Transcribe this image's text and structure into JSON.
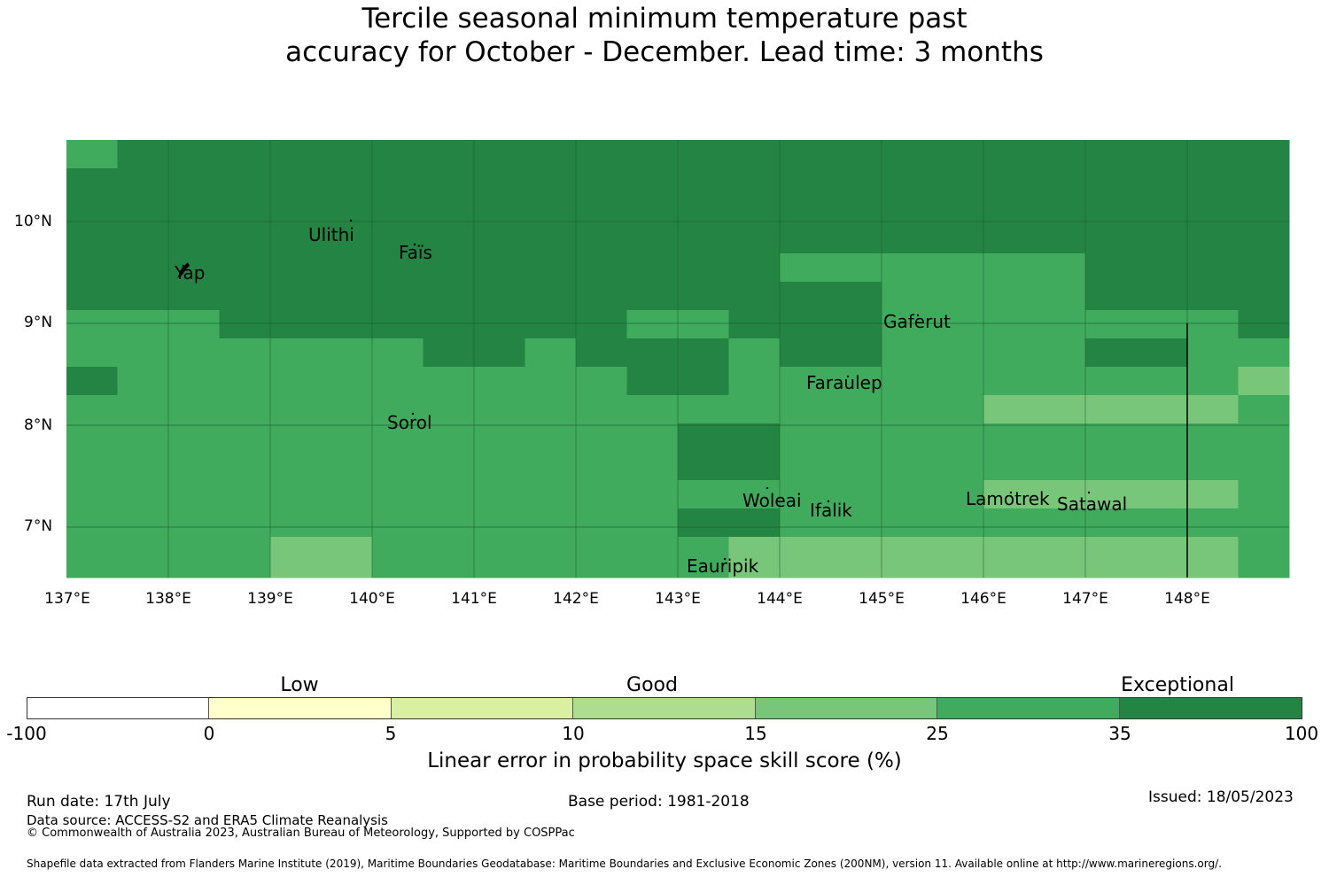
{
  "title": {
    "line1": "Tercile seasonal minimum temperature past",
    "line2": "accuracy for October - December. Lead time: 3 months"
  },
  "map": {
    "lat_labels": [
      "10°N",
      "9°N",
      "8°N",
      "7°N"
    ],
    "lon_labels": [
      "137°E",
      "138°E",
      "139°E",
      "140°E",
      "141°E",
      "142°E",
      "143°E",
      "144°E",
      "145°E",
      "146°E",
      "147°E",
      "148°E"
    ],
    "islands": [
      {
        "name": "Ulithi"
      },
      {
        "name": "Faïs"
      },
      {
        "name": "Yap"
      },
      {
        "name": "Gaferut"
      },
      {
        "name": "Faraulep"
      },
      {
        "name": "Sorol"
      },
      {
        "name": "Woleai"
      },
      {
        "name": "Ifalik"
      },
      {
        "name": "Lamotrek"
      },
      {
        "name": "Satawal"
      },
      {
        "name": "Eauripik"
      }
    ],
    "grid_rows_top_to_bottom": [
      [
        "25-35",
        "35-100",
        "35-100",
        "35-100",
        "35-100",
        "35-100",
        "35-100",
        "35-100",
        "35-100",
        "35-100",
        "35-100",
        "35-100",
        "35-100",
        "35-100",
        "35-100",
        "35-100",
        "35-100",
        "35-100",
        "35-100",
        "35-100",
        "35-100",
        "35-100",
        "35-100",
        "35-100"
      ],
      [
        "35-100",
        "35-100",
        "35-100",
        "35-100",
        "35-100",
        "35-100",
        "35-100",
        "35-100",
        "35-100",
        "35-100",
        "35-100",
        "35-100",
        "35-100",
        "35-100",
        "35-100",
        "35-100",
        "35-100",
        "35-100",
        "35-100",
        "35-100",
        "35-100",
        "35-100",
        "35-100",
        "35-100"
      ],
      [
        "35-100",
        "35-100",
        "35-100",
        "35-100",
        "35-100",
        "35-100",
        "35-100",
        "35-100",
        "35-100",
        "35-100",
        "35-100",
        "35-100",
        "35-100",
        "35-100",
        "35-100",
        "35-100",
        "35-100",
        "35-100",
        "35-100",
        "35-100",
        "35-100",
        "35-100",
        "35-100",
        "35-100"
      ],
      [
        "35-100",
        "35-100",
        "35-100",
        "35-100",
        "35-100",
        "35-100",
        "35-100",
        "35-100",
        "35-100",
        "35-100",
        "35-100",
        "35-100",
        "35-100",
        "35-100",
        "35-100",
        "35-100",
        "35-100",
        "35-100",
        "35-100",
        "35-100",
        "35-100",
        "35-100",
        "35-100",
        "35-100"
      ],
      [
        "35-100",
        "35-100",
        "35-100",
        "35-100",
        "35-100",
        "35-100",
        "35-100",
        "35-100",
        "35-100",
        "35-100",
        "35-100",
        "35-100",
        "35-100",
        "35-100",
        "25-35",
        "25-35",
        "25-35",
        "25-35",
        "25-35",
        "25-35",
        "35-100",
        "35-100",
        "35-100",
        "35-100"
      ],
      [
        "35-100",
        "35-100",
        "35-100",
        "35-100",
        "35-100",
        "35-100",
        "35-100",
        "35-100",
        "35-100",
        "35-100",
        "35-100",
        "35-100",
        "35-100",
        "35-100",
        "35-100",
        "35-100",
        "25-35",
        "25-35",
        "25-35",
        "25-35",
        "35-100",
        "35-100",
        "35-100",
        "35-100"
      ],
      [
        "25-35",
        "25-35",
        "25-35",
        "35-100",
        "35-100",
        "35-100",
        "35-100",
        "35-100",
        "35-100",
        "35-100",
        "35-100",
        "25-35",
        "25-35",
        "35-100",
        "35-100",
        "35-100",
        "25-35",
        "25-35",
        "25-35",
        "25-35",
        "25-35",
        "25-35",
        "25-35",
        "35-100"
      ],
      [
        "25-35",
        "25-35",
        "25-35",
        "25-35",
        "25-35",
        "25-35",
        "25-35",
        "35-100",
        "35-100",
        "25-35",
        "35-100",
        "35-100",
        "35-100",
        "25-35",
        "35-100",
        "35-100",
        "25-35",
        "25-35",
        "25-35",
        "25-35",
        "35-100",
        "35-100",
        "25-35",
        "25-35"
      ],
      [
        "35-100",
        "25-35",
        "25-35",
        "25-35",
        "25-35",
        "25-35",
        "25-35",
        "25-35",
        "25-35",
        "25-35",
        "25-35",
        "35-100",
        "35-100",
        "25-35",
        "25-35",
        "25-35",
        "25-35",
        "25-35",
        "25-35",
        "25-35",
        "25-35",
        "25-35",
        "25-35",
        "15-25"
      ],
      [
        "25-35",
        "25-35",
        "25-35",
        "25-35",
        "25-35",
        "25-35",
        "25-35",
        "25-35",
        "25-35",
        "25-35",
        "25-35",
        "25-35",
        "25-35",
        "25-35",
        "25-35",
        "25-35",
        "25-35",
        "25-35",
        "15-25",
        "15-25",
        "15-25",
        "15-25",
        "15-25",
        "25-35"
      ]
    ],
    "bottom_strip": [
      "25-35",
      "25-35",
      "25-35",
      "25-35",
      "15-25",
      "15-25",
      "25-35",
      "25-35",
      "25-35",
      "25-35",
      "25-35",
      "25-35",
      "25-35",
      "15-25",
      "15-25",
      "15-25",
      "15-25",
      "15-25",
      "15-25",
      "15-25",
      "15-25",
      "15-25",
      "15-25",
      "25-35"
    ]
  },
  "colorbar": {
    "category_labels": [
      "Low",
      "Good",
      "Exceptional"
    ],
    "tick_labels": [
      "-100",
      "0",
      "5",
      "10",
      "15",
      "25",
      "35",
      "100"
    ],
    "colors": [
      "#ffffff",
      "#ffffcc",
      "#d9f0a3",
      "#addd8e",
      "#78c679",
      "#41ab5d",
      "#238443"
    ],
    "title": "Linear error in probability space skill score (%)"
  },
  "footer": {
    "run_date": "Run date: 17th July",
    "base_period": "Base period: 1981-2018",
    "issued": "Issued: 18/05/2023",
    "data_source": "Data source: ACCESS-S2 and ERA5 Climate Reanalysis",
    "copyright": "© Commonwealth of Australia 2023, Australian Bureau of Meteorology, Supported by COSPPac",
    "shapefile": "Shapefile data extracted from Flanders Marine Institute (2019), Maritime Boundaries Geodatabase: Maritime Boundaries and Exclusive Economic Zones (200NM), version 11. Available online at http://www.marineregions.org/."
  }
}
